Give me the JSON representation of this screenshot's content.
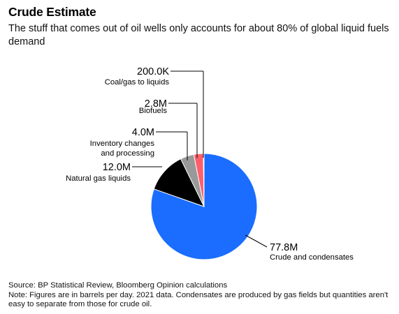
{
  "header": {
    "title": "Crude Estimate",
    "subtitle": "The stuff that comes out of oil wells only accounts for about 80% of global liquid fuels demand"
  },
  "footer": {
    "source": "Source: BP Statistical Review, Bloomberg Opinion calculations",
    "note": "Note: Figures are in barrels per day. 2021 data. Condensates are produced by gas fields but quantities aren't easy to separate from those for crude oil."
  },
  "chart_data": {
    "type": "pie",
    "title": "Crude Estimate",
    "slices": [
      {
        "label": "Crude and condensates",
        "value": 77.8,
        "value_label": "77.8M",
        "color": "#1a6dff",
        "label_side": "right"
      },
      {
        "label": "Natural gas liquids",
        "value": 12.0,
        "value_label": "12.0M",
        "color": "#000000",
        "label_side": "left"
      },
      {
        "label": "Inventory changes and processing",
        "value": 4.0,
        "value_label": "4.0M",
        "color": "#999999",
        "label_side": "left"
      },
      {
        "label": "Biofuels",
        "value": 2.8,
        "value_label": "2.8M",
        "color": "#ff5f6d",
        "label_side": "left"
      },
      {
        "label": "Coal/gas to liquids",
        "value": 0.2,
        "value_label": "200.0K",
        "color": "#000000",
        "label_side": "left"
      }
    ],
    "units": "barrels per day",
    "legend": "none"
  }
}
